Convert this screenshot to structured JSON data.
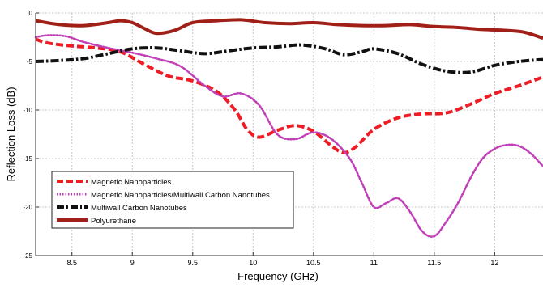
{
  "chart_data": {
    "type": "line",
    "title": "",
    "xlabel": "Frequency (GHz)",
    "ylabel": "Reflection Loss (dB)",
    "xlim": [
      8.2,
      12.4
    ],
    "ylim": [
      -25,
      0
    ],
    "x_ticks": [
      8.5,
      9,
      9.5,
      10,
      10.5,
      11,
      11.5,
      12
    ],
    "x_tick_labels": [
      "8.5",
      "9",
      "9.5",
      "10",
      "10.5",
      "11",
      "11.5",
      "12"
    ],
    "y_ticks": [
      0,
      -5,
      -10,
      -15,
      -20,
      -25
    ],
    "y_tick_labels": [
      "0",
      "-5",
      "-10",
      "-15",
      "-20",
      "-25"
    ],
    "grid": true,
    "legend_position": "bottom-left",
    "series": [
      {
        "name": "Magnetic Nanoparticles",
        "color": "#ee1c24",
        "style": "dashed",
        "x": [
          8.2,
          8.3,
          8.5,
          8.7,
          8.9,
          9.1,
          9.3,
          9.5,
          9.7,
          9.85,
          9.95,
          10.05,
          10.2,
          10.35,
          10.5,
          10.65,
          10.75,
          10.85,
          11.0,
          11.2,
          11.4,
          11.6,
          11.8,
          12.0,
          12.2,
          12.4
        ],
        "y": [
          -2.7,
          -3.1,
          -3.4,
          -3.6,
          -4.0,
          -5.3,
          -6.5,
          -7.0,
          -8.1,
          -10.0,
          -12.0,
          -12.8,
          -12.1,
          -11.6,
          -12.2,
          -13.7,
          -14.4,
          -13.8,
          -12.0,
          -10.8,
          -10.4,
          -10.3,
          -9.4,
          -8.3,
          -7.5,
          -6.6
        ]
      },
      {
        "name": "Magnetic Nanoparticles/Multiwall Carbon Nanotubes",
        "color": "#c040b8",
        "style": "dotted",
        "x": [
          8.2,
          8.3,
          8.45,
          8.6,
          8.8,
          9.0,
          9.2,
          9.4,
          9.6,
          9.75,
          9.9,
          10.05,
          10.2,
          10.35,
          10.5,
          10.65,
          10.8,
          10.9,
          11.0,
          11.1,
          11.2,
          11.3,
          11.4,
          11.5,
          11.6,
          11.7,
          11.8,
          11.9,
          12.0,
          12.1,
          12.2,
          12.3,
          12.4
        ],
        "y": [
          -2.5,
          -2.3,
          -2.4,
          -3.0,
          -3.6,
          -4.1,
          -4.7,
          -5.5,
          -7.5,
          -8.6,
          -8.3,
          -9.5,
          -12.5,
          -13.0,
          -12.3,
          -13.0,
          -15.0,
          -17.5,
          -20.0,
          -19.6,
          -19.1,
          -20.5,
          -22.5,
          -23.0,
          -21.5,
          -19.5,
          -17.0,
          -15.0,
          -14.0,
          -13.6,
          -13.7,
          -14.5,
          -15.8
        ]
      },
      {
        "name": "Multiwall Carbon Nanotubes",
        "color": "#111111",
        "style": "dashdot",
        "x": [
          8.2,
          8.4,
          8.6,
          8.8,
          9.0,
          9.2,
          9.4,
          9.6,
          9.8,
          10.0,
          10.2,
          10.4,
          10.6,
          10.75,
          10.9,
          11.0,
          11.2,
          11.4,
          11.6,
          11.8,
          12.0,
          12.2,
          12.4
        ],
        "y": [
          -5.0,
          -4.9,
          -4.7,
          -4.2,
          -3.7,
          -3.6,
          -3.9,
          -4.2,
          -3.9,
          -3.6,
          -3.5,
          -3.3,
          -3.7,
          -4.3,
          -4.0,
          -3.7,
          -4.2,
          -5.3,
          -6.0,
          -6.1,
          -5.4,
          -5.0,
          -4.8
        ]
      },
      {
        "name": "Polyurethane",
        "color": "#a02018",
        "style": "solid",
        "x": [
          8.2,
          8.4,
          8.6,
          8.8,
          8.9,
          9.0,
          9.1,
          9.2,
          9.35,
          9.5,
          9.7,
          9.9,
          10.1,
          10.3,
          10.5,
          10.7,
          10.9,
          11.1,
          11.3,
          11.5,
          11.7,
          11.9,
          12.1,
          12.25,
          12.4
        ],
        "y": [
          -0.8,
          -1.2,
          -1.3,
          -1.0,
          -0.8,
          -1.0,
          -1.6,
          -2.1,
          -1.8,
          -1.0,
          -0.8,
          -0.7,
          -1.0,
          -1.1,
          -1.0,
          -1.2,
          -1.3,
          -1.3,
          -1.2,
          -1.4,
          -1.5,
          -1.7,
          -1.8,
          -2.0,
          -2.6
        ]
      }
    ]
  }
}
